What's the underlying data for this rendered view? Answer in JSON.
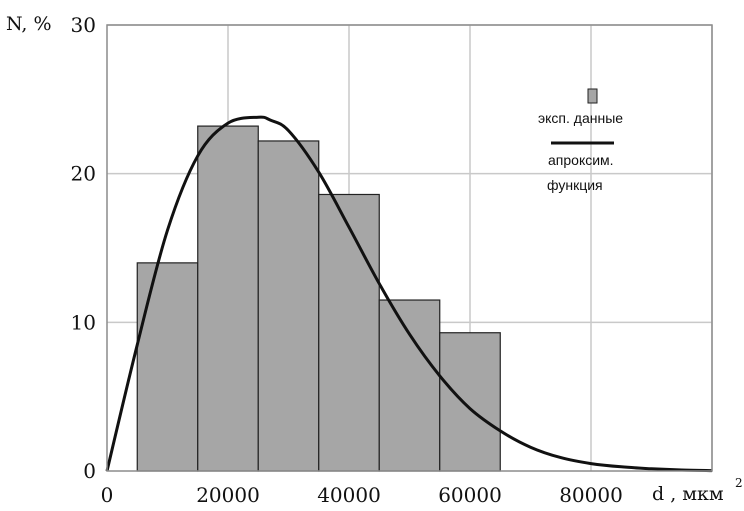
{
  "chart_data": {
    "type": "bar",
    "ylabel": "N, %",
    "xlabel": "d , мкм",
    "xlabel_superscript": "2",
    "xlim": [
      0,
      100000
    ],
    "ylim": [
      0,
      30
    ],
    "grid": true,
    "x_ticks": [
      0,
      20000,
      40000,
      60000,
      80000
    ],
    "x_tick_labels": [
      "0",
      "20000",
      "40000",
      "60000",
      "80000"
    ],
    "y_ticks": [
      0,
      10,
      20,
      30
    ],
    "y_tick_labels": [
      "0",
      "10",
      "20",
      "30"
    ],
    "bars": [
      {
        "x0": 5000,
        "x1": 15000,
        "value": 14
      },
      {
        "x0": 15000,
        "x1": 25000,
        "value": 23.2
      },
      {
        "x0": 25000,
        "x1": 35000,
        "value": 22.2
      },
      {
        "x0": 35000,
        "x1": 45000,
        "value": 18.6
      },
      {
        "x0": 45000,
        "x1": 55000,
        "value": 11.5
      },
      {
        "x0": 55000,
        "x1": 65000,
        "value": 9.3
      }
    ],
    "curve": {
      "x": [
        0,
        5000,
        10000,
        15000,
        20000,
        25000,
        27000,
        30000,
        35000,
        40000,
        45000,
        50000,
        55000,
        60000,
        65000,
        70000,
        75000,
        80000,
        85000,
        90000,
        95000,
        100000
      ],
      "y": [
        0,
        8.5,
        16.2,
        21.2,
        23.4,
        23.8,
        23.6,
        22.9,
        20.1,
        16.4,
        12.6,
        9.2,
        6.4,
        4.2,
        2.7,
        1.6,
        0.9,
        0.5,
        0.28,
        0.15,
        0.07,
        0.03
      ]
    },
    "legend": {
      "placement": "top-right",
      "bar_entry": "эксп. данные",
      "line_entry_line1": "апроксим.",
      "line_entry_line2": "функция"
    },
    "colors": {
      "bar_fill": "#a6a6a6",
      "bar_stroke": "#222222",
      "curve": "#111111",
      "grid": "#c9c9c9",
      "frame": "#8c8c8c"
    }
  }
}
